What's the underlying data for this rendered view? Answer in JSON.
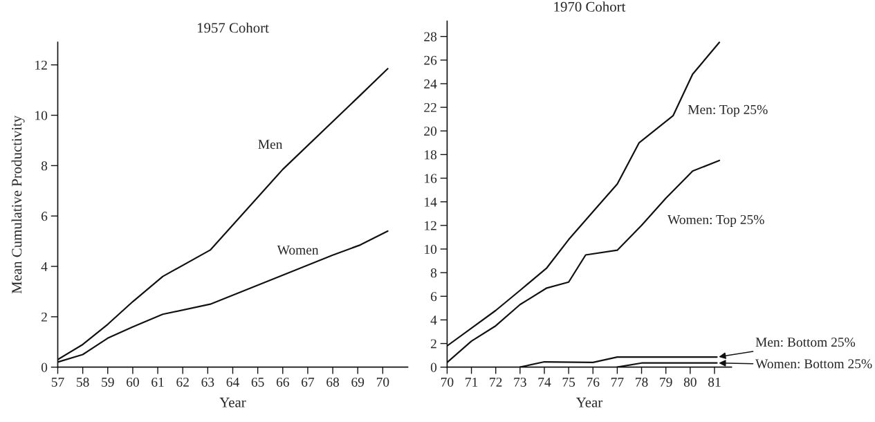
{
  "chart_data": [
    {
      "type": "line",
      "title": "1957 Cohort",
      "xlabel": "Year",
      "ylabel": "Mean Cumulative Productivity",
      "xlim": [
        57,
        71
      ],
      "xticks": [
        57,
        58,
        59,
        60,
        61,
        62,
        63,
        64,
        65,
        66,
        67,
        68,
        69,
        70
      ],
      "ylim": [
        0,
        12.9
      ],
      "yticks": [
        0,
        2,
        4,
        6,
        8,
        10,
        12
      ],
      "grid": false,
      "legend": false,
      "series": [
        {
          "color": "#111111",
          "x": [
            57,
            58,
            59,
            60,
            61.2,
            63.1,
            66,
            69,
            70.2
          ],
          "values": [
            0.3,
            0.9,
            1.7,
            2.6,
            3.6,
            4.65,
            7.85,
            10.7,
            11.85
          ]
        },
        {
          "color": "#111111",
          "x": [
            57,
            58,
            59,
            60,
            61.2,
            63.1,
            66,
            68,
            69.1,
            70.2
          ],
          "values": [
            0.2,
            0.5,
            1.15,
            1.6,
            2.1,
            2.5,
            3.65,
            4.45,
            4.85,
            5.4
          ]
        }
      ],
      "annotations": [
        "Men",
        "Women"
      ]
    },
    {
      "type": "line",
      "title": "1970 Cohort",
      "xlabel": "Year",
      "xlim": [
        70,
        81.7
      ],
      "xticks": [
        70,
        71,
        72,
        73,
        74,
        75,
        76,
        77,
        78,
        79,
        80,
        81
      ],
      "ylim": [
        0,
        29.3
      ],
      "yticks": [
        0,
        2,
        4,
        6,
        8,
        10,
        12,
        14,
        16,
        18,
        20,
        22,
        24,
        26,
        28
      ],
      "grid": false,
      "legend": false,
      "series": [
        {
          "color": "#111111",
          "x": [
            70,
            71,
            72,
            73,
            74.1,
            75,
            76.1,
            77,
            77.9,
            79.3,
            80.1,
            81.2
          ],
          "values": [
            1.8,
            3.3,
            4.8,
            6.5,
            8.4,
            10.8,
            13.4,
            15.5,
            19,
            21.3,
            24.8,
            27.5
          ]
        },
        {
          "color": "#111111",
          "x": [
            70,
            71,
            72,
            73,
            74.1,
            75,
            75.7,
            77,
            78,
            79,
            80.1,
            81.2
          ],
          "values": [
            0.4,
            2.2,
            3.5,
            5.3,
            6.7,
            7.2,
            9.5,
            9.9,
            12,
            14.3,
            16.6,
            17.5
          ]
        },
        {
          "color": "#111111",
          "x": [
            73,
            74,
            76,
            77,
            81.1
          ],
          "values": [
            0,
            0.45,
            0.4,
            0.85,
            0.85
          ]
        },
        {
          "color": "#111111",
          "x": [
            77,
            78,
            81.1
          ],
          "values": [
            0,
            0.35,
            0.35
          ]
        }
      ],
      "annotations": [
        "Men: Top 25%",
        "Women: Top 25%",
        {
          "text": "Men: Bottom 25%",
          "x": 81.1,
          "y": 0.85
        },
        {
          "text": "Women: Bottom 25%",
          "x": 81.1,
          "y": 0.35
        }
      ]
    }
  ]
}
